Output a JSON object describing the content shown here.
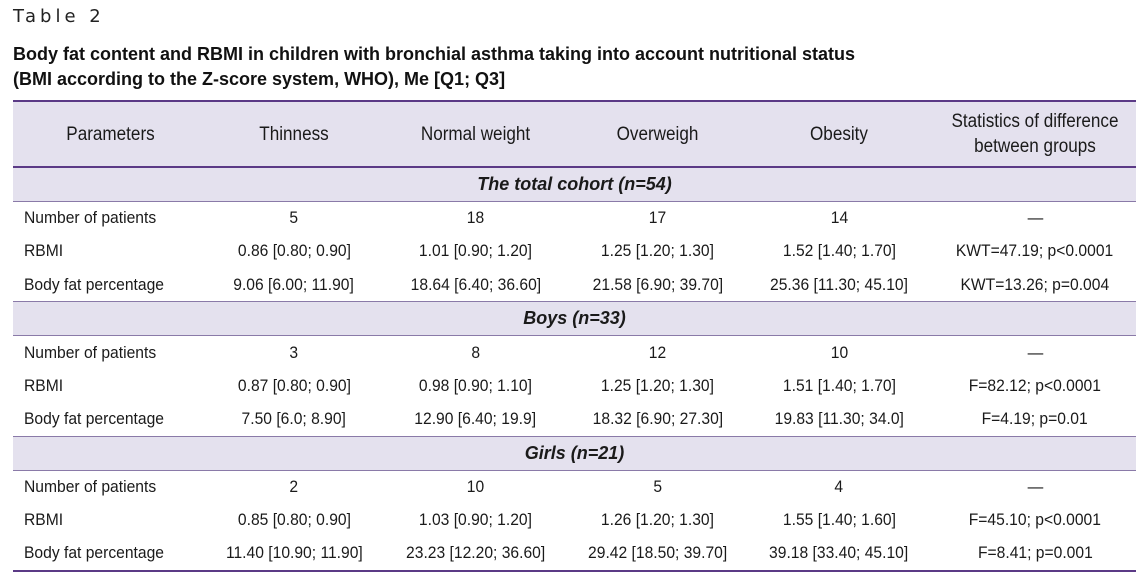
{
  "table_label": "Table 2",
  "caption": {
    "line1": "Body fat content and RBMI in children with bronchial asthma taking into account nutritional status",
    "line2": "(BMI according to the Z-score system, WHO), Me [Q1; Q3]"
  },
  "headers": {
    "parameters": "Parameters",
    "thinness": "Thinness",
    "normal": "Normal weight",
    "overweigh": "Overweigh",
    "obesity": "Obesity",
    "stats_line1": "Statistics of difference",
    "stats_line2": "between groups"
  },
  "sections": [
    {
      "title": "The total cohort (n=54)",
      "rows": [
        [
          "Number of patients",
          "5",
          "18",
          "17",
          "14",
          "—"
        ],
        [
          "RBMI",
          "0.86 [0.80; 0.90]",
          "1.01 [0.90; 1.20]",
          "1.25 [1.20; 1.30]",
          "1.52 [1.40; 1.70]",
          "KWT=47.19; p<0.0001"
        ],
        [
          "Body fat percentage",
          "9.06 [6.00; 11.90]",
          "18.64 [6.40; 36.60]",
          "21.58 [6.90; 39.70]",
          "25.36 [11.30; 45.10]",
          "KWT=13.26; p=0.004"
        ]
      ]
    },
    {
      "title": "Boys (n=33)",
      "rows": [
        [
          "Number of patients",
          "3",
          "8",
          "12",
          "10",
          "—"
        ],
        [
          "RBMI",
          "0.87 [0.80; 0.90]",
          "0.98 [0.90; 1.10]",
          "1.25 [1.20; 1.30]",
          "1.51 [1.40; 1.70]",
          "F=82.12; p<0.0001"
        ],
        [
          "Body fat percentage",
          "7.50 [6.0; 8.90]",
          "12.90 [6.40; 19.9]",
          "18.32 [6.90; 27.30]",
          "19.83 [11.30; 34.0]",
          "F=4.19; p=0.01"
        ]
      ]
    },
    {
      "title": "Girls (n=21)",
      "rows": [
        [
          "Number of patients",
          "2",
          "10",
          "5",
          "4",
          "—"
        ],
        [
          "RBMI",
          "0.85 [0.80; 0.90]",
          "1.03 [0.90; 1.20]",
          "1.26 [1.20; 1.30]",
          "1.55 [1.40; 1.60]",
          "F=45.10; p<0.0001"
        ],
        [
          "Body fat percentage",
          "11.40 [10.90; 11.90]",
          "23.23 [12.20; 36.60]",
          "29.42 [18.50; 39.70]",
          "39.18 [33.40; 45.10]",
          "F=8.41; p=0.001"
        ]
      ]
    }
  ]
}
